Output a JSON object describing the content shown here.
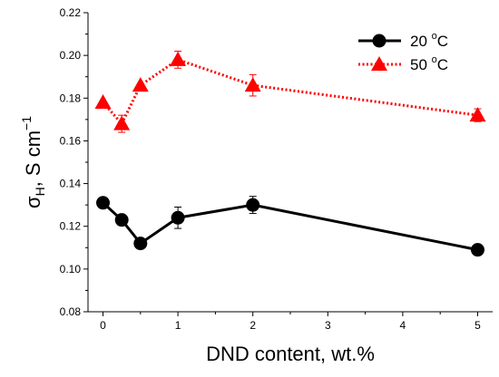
{
  "chart_data": {
    "type": "line",
    "xlabel": "DND content, wt.%",
    "ylabel_main": "σ",
    "ylabel_sub": "H",
    "ylabel_rest": ", S cm",
    "ylabel_sup": "−1",
    "xlim": [
      -0.2,
      5.2
    ],
    "ylim": [
      0.08,
      0.22
    ],
    "xticks": [
      0,
      1,
      2,
      3,
      4,
      5
    ],
    "xtick_labels": [
      "0",
      "1",
      "2",
      "3",
      "4",
      "5"
    ],
    "yticks": [
      0.08,
      0.1,
      0.12,
      0.14,
      0.16,
      0.18,
      0.2,
      0.22
    ],
    "ytick_labels": [
      "0.08",
      "0.10",
      "0.12",
      "0.14",
      "0.16",
      "0.18",
      "0.20",
      "0.22"
    ],
    "grid": false,
    "legend_position": "top-right",
    "series": [
      {
        "name": "20 °C",
        "name_main": "20 ",
        "name_sup": "o",
        "name_unit": "C",
        "color": "#000000",
        "marker": "circle",
        "line_style": "solid",
        "x": [
          0,
          0.25,
          0.5,
          1,
          2,
          5
        ],
        "y": [
          0.131,
          0.123,
          0.112,
          0.124,
          0.13,
          0.109
        ],
        "err": [
          0,
          0,
          0,
          0.005,
          0.004,
          0
        ]
      },
      {
        "name": "50 °C",
        "name_main": "50 ",
        "name_sup": "o",
        "name_unit": "C",
        "color": "#ff0000",
        "marker": "triangle",
        "line_style": "dotted",
        "x": [
          0,
          0.25,
          0.5,
          1,
          2,
          5
        ],
        "y": [
          0.178,
          0.168,
          0.186,
          0.198,
          0.186,
          0.172
        ],
        "err": [
          0,
          0.004,
          0,
          0.004,
          0.005,
          0.003
        ]
      }
    ]
  }
}
